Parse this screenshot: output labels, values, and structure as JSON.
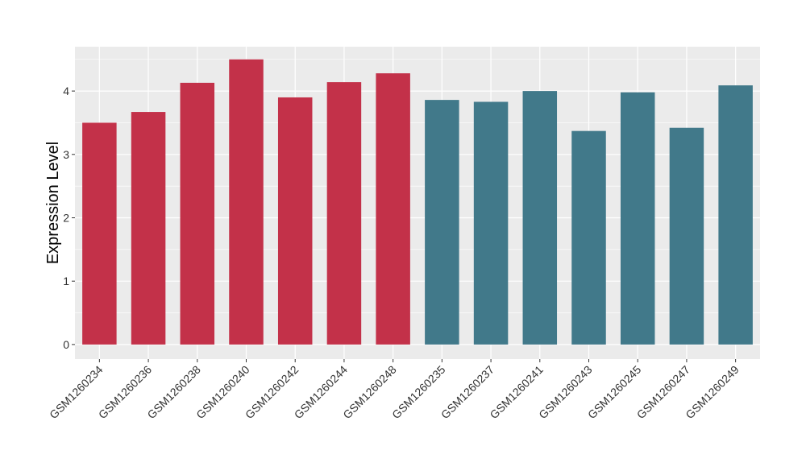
{
  "chart_data": {
    "type": "bar",
    "title": "",
    "xlabel": "",
    "ylabel": "Expression Level",
    "ylim": [
      -0.23,
      4.7
    ],
    "yticks": [
      0,
      1,
      2,
      3,
      4
    ],
    "grid": true,
    "legend": "none",
    "categories": [
      "GSM1260234",
      "GSM1260236",
      "GSM1260238",
      "GSM1260240",
      "GSM1260242",
      "GSM1260244",
      "GSM1260248",
      "GSM1260235",
      "GSM1260237",
      "GSM1260241",
      "GSM1260243",
      "GSM1260245",
      "GSM1260247",
      "GSM1260249"
    ],
    "values": [
      3.5,
      3.67,
      4.13,
      4.5,
      3.9,
      4.14,
      4.28,
      3.86,
      3.83,
      4.0,
      3.37,
      3.98,
      3.42,
      4.09
    ],
    "groups": [
      0,
      0,
      0,
      0,
      0,
      0,
      0,
      1,
      1,
      1,
      1,
      1,
      1,
      1
    ],
    "group_colors": [
      "#C33149",
      "#41798A"
    ]
  }
}
